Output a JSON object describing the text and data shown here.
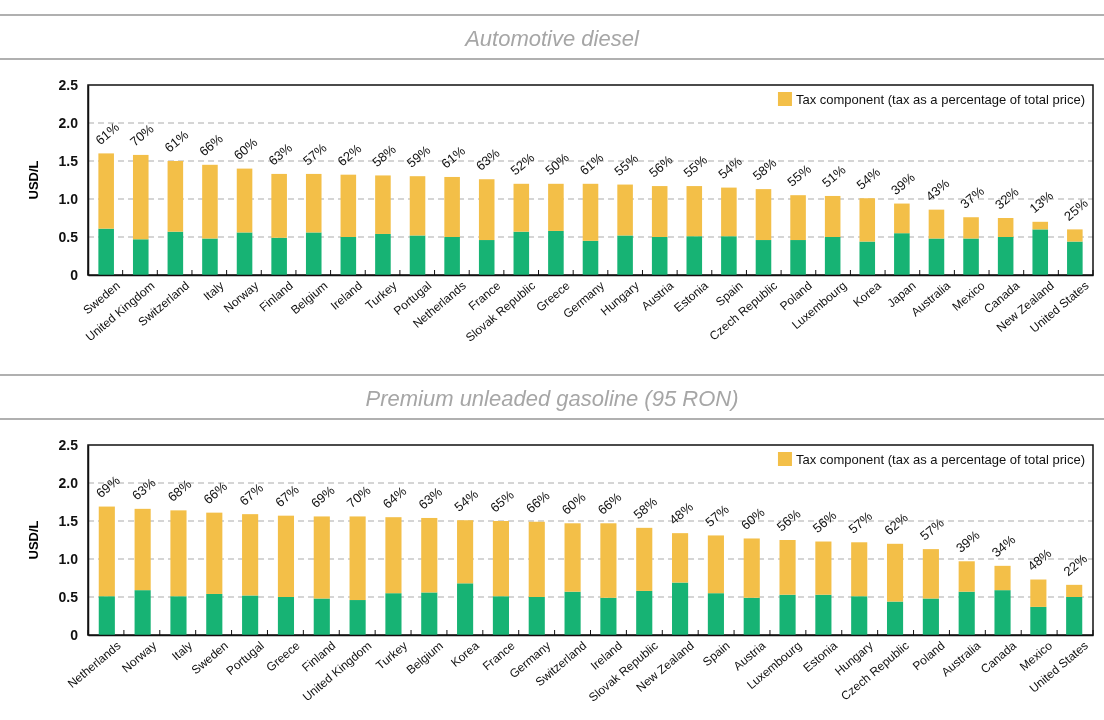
{
  "chart_data": [
    {
      "type": "bar",
      "title": "Automotive diesel",
      "ylabel": "USD/L",
      "stacked": true,
      "grid": "y",
      "legend": "top right",
      "ylim": [
        0,
        2.5
      ],
      "yticks": [
        0,
        {
          "value": 0.5,
          "label": "0.5"
        },
        {
          "value": 1,
          "label": "1.0"
        },
        {
          "value": 1.5,
          "label": "1.5"
        },
        {
          "value": 2,
          "label": "2.0"
        },
        {
          "value": 2.5,
          "label": "2.5"
        }
      ],
      "categories": [
        "Sweden",
        "United Kingdom",
        "Switzerland",
        "Italy",
        "Norway",
        "Finland",
        "Belgium",
        "Ireland",
        "Turkey",
        "Portugal",
        "Netherlands",
        "France",
        "Slovak Republic",
        "Greece",
        "Germany",
        "Hungary",
        "Austria",
        "Estonia",
        "Spain",
        "Czech Republic",
        "Poland",
        "Luxembourg",
        "Korea",
        "Japan",
        "Australia",
        "Mexico",
        "Canada",
        "New Zealand",
        "United States"
      ],
      "series": [
        {
          "color": "#17b374",
          "values": [
            0.61,
            0.47,
            0.57,
            0.48,
            0.56,
            0.49,
            0.56,
            0.5,
            0.54,
            0.52,
            0.5,
            0.46,
            0.57,
            0.58,
            0.45,
            0.52,
            0.5,
            0.51,
            0.51,
            0.46,
            0.46,
            0.5,
            0.44,
            0.55,
            0.48,
            0.48,
            0.5,
            0.6,
            0.44
          ]
        },
        {
          "name": "Tax component (tax as a percentage of total price)",
          "color": "#f3bf48",
          "values": [
            0.99,
            1.11,
            0.93,
            0.97,
            0.84,
            0.84,
            0.77,
            0.82,
            0.77,
            0.78,
            0.79,
            0.8,
            0.63,
            0.62,
            0.75,
            0.67,
            0.67,
            0.66,
            0.64,
            0.67,
            0.59,
            0.54,
            0.57,
            0.39,
            0.38,
            0.28,
            0.25,
            0.1,
            0.16
          ]
        }
      ],
      "annotations": [
        "61%",
        "70%",
        "61%",
        "66%",
        "60%",
        "63%",
        "57%",
        "62%",
        "58%",
        "59%",
        "61%",
        "63%",
        "52%",
        "50%",
        "61%",
        "55%",
        "56%",
        "55%",
        "54%",
        "58%",
        "55%",
        "51%",
        "54%",
        "39%",
        "43%",
        "37%",
        "32%",
        "13%",
        "25%"
      ]
    },
    {
      "type": "bar",
      "title": "Premium unleaded gasoline (95 RON)",
      "ylabel": "USD/L",
      "stacked": true,
      "grid": "y",
      "legend": "top right",
      "ylim": [
        0,
        2.5
      ],
      "yticks": [
        0,
        {
          "value": 0.5,
          "label": "0.5"
        },
        {
          "value": 1,
          "label": "1.0"
        },
        {
          "value": 1.5,
          "label": "1.5"
        },
        {
          "value": 2,
          "label": "2.0"
        },
        {
          "value": 2.5,
          "label": "2.5"
        }
      ],
      "categories": [
        "Netherlands",
        "Norway",
        "Italy",
        "Sweden",
        "Portugal",
        "Greece",
        "Finland",
        "United Kingdom",
        "Turkey",
        "Belgium",
        "Korea",
        "France",
        "Germany",
        "Switzerland",
        "Ireland",
        "Slovak Republic",
        "New Zealand",
        "Spain",
        "Austria",
        "Luxembourg",
        "Estonia",
        "Hungary",
        "Czech Republic",
        "Poland",
        "Australia",
        "Canada",
        "Mexico",
        "United States"
      ],
      "series": [
        {
          "color": "#17b374",
          "values": [
            0.51,
            0.59,
            0.51,
            0.54,
            0.52,
            0.5,
            0.48,
            0.46,
            0.55,
            0.56,
            0.68,
            0.51,
            0.5,
            0.57,
            0.49,
            0.58,
            0.69,
            0.55,
            0.49,
            0.53,
            0.53,
            0.51,
            0.44,
            0.48,
            0.57,
            0.59,
            0.37,
            0.5
          ]
        },
        {
          "name": "Tax component (tax as a percentage of total price)",
          "color": "#f3bf48",
          "values": [
            1.18,
            1.07,
            1.13,
            1.07,
            1.07,
            1.07,
            1.08,
            1.1,
            1.0,
            0.98,
            0.83,
            0.99,
            0.99,
            0.9,
            0.98,
            0.83,
            0.65,
            0.76,
            0.78,
            0.72,
            0.7,
            0.71,
            0.76,
            0.65,
            0.4,
            0.32,
            0.36,
            0.16
          ]
        }
      ],
      "annotations": [
        "69%",
        "63%",
        "68%",
        "66%",
        "67%",
        "67%",
        "69%",
        "70%",
        "64%",
        "63%",
        "54%",
        "65%",
        "66%",
        "60%",
        "66%",
        "58%",
        "48%",
        "57%",
        "60%",
        "56%",
        "56%",
        "57%",
        "62%",
        "57%",
        "39%",
        "34%",
        "48%",
        "22%"
      ]
    }
  ]
}
